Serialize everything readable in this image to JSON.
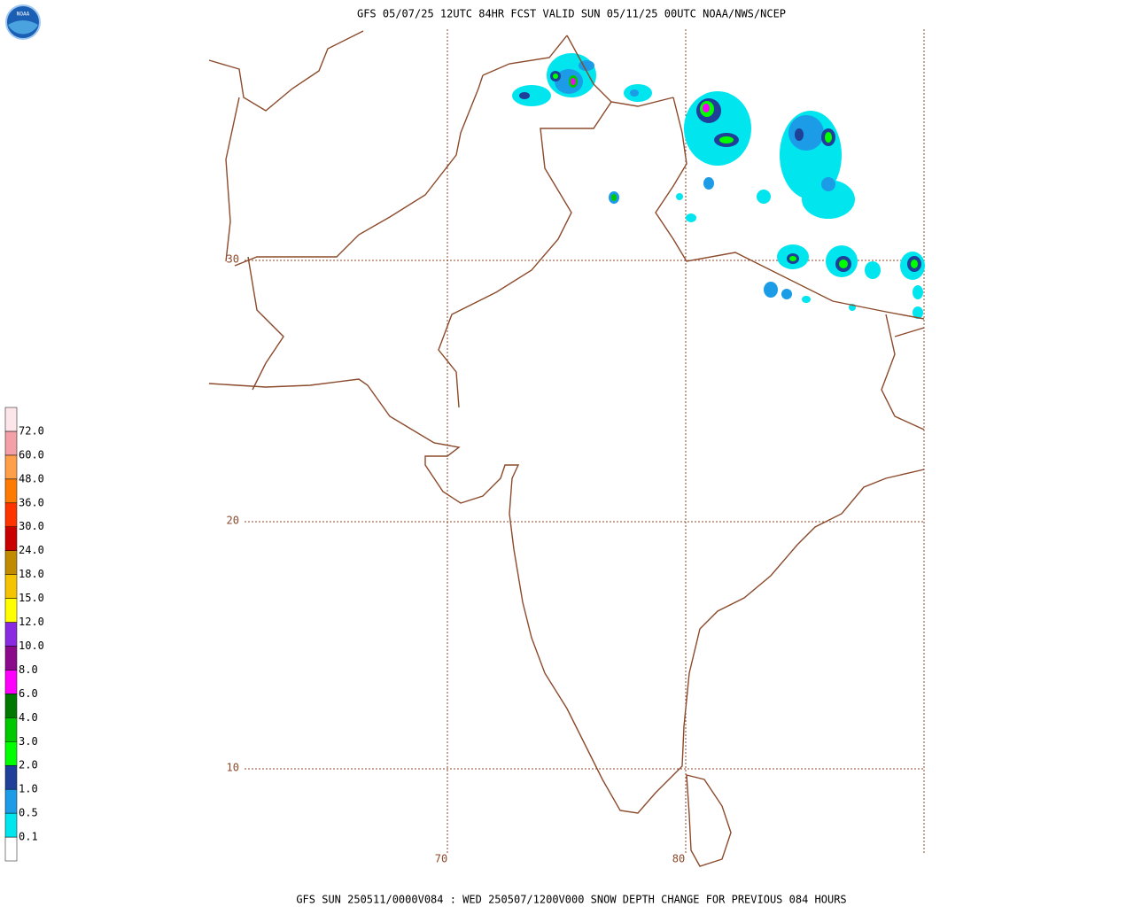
{
  "header": {
    "title": "GFS 05/07/25 12UTC 84HR FCST VALID SUN 05/11/25 00UTC NOAA/NWS/NCEP"
  },
  "footer": {
    "caption": "GFS SUN 250511/0000V084 : WED 250507/1200V000 SNOW DEPTH CHANGE FOR PREVIOUS 084 HOURS"
  },
  "logo": {
    "text": "NOAA"
  },
  "map": {
    "lat_labels": [
      "30",
      "20",
      "10"
    ],
    "lon_labels": [
      "70",
      "80"
    ],
    "colorbar": {
      "colors": [
        "#ffffff",
        "#00e5ee",
        "#1c9be6",
        "#1f3f99",
        "#00ff00",
        "#00c800",
        "#007800",
        "#ff00ff",
        "#8b0a8b",
        "#8a2be2",
        "#ffff00",
        "#f5c400",
        "#c08b00",
        "#c80000",
        "#ff3300",
        "#ff7a00",
        "#ff9f4a",
        "#f4a0a8",
        "#fde6ea"
      ],
      "labels": [
        "0.1",
        "0.5",
        "1.0",
        "2.0",
        "3.0",
        "4.0",
        "6.0",
        "8.0",
        "10.0",
        "12.0",
        "15.0",
        "18.0",
        "24.0",
        "30.0",
        "36.0",
        "48.0",
        "60.0",
        "72.0"
      ]
    }
  }
}
